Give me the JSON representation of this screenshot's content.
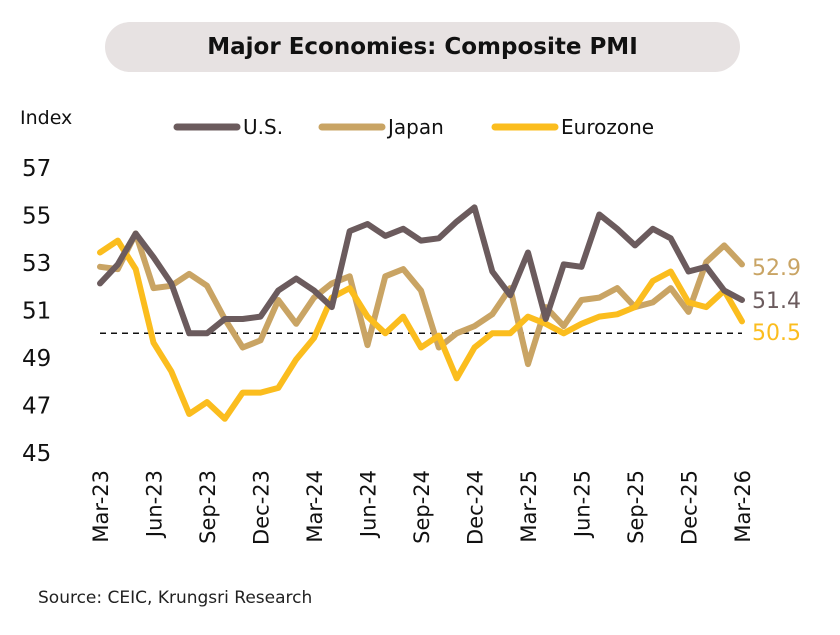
{
  "chart_data": {
    "type": "line",
    "title": "Major Economies: Composite PMI",
    "ylabel": "Index",
    "xlabel": "",
    "ylim": [
      45,
      57
    ],
    "yticks": [
      "45",
      "47",
      "49",
      "51",
      "53",
      "55",
      "57"
    ],
    "x": [
      "Mar-23",
      "Apr-23",
      "May-23",
      "Jun-23",
      "Jul-23",
      "Aug-23",
      "Sep-23",
      "Oct-23",
      "Nov-23",
      "Dec-23",
      "Jan-24",
      "Feb-24",
      "Mar-24",
      "Apr-24",
      "May-24",
      "Jun-24",
      "Jul-24",
      "Aug-24",
      "Sep-24",
      "Oct-24",
      "Nov-24",
      "Dec-24",
      "Jan-25",
      "Feb-25",
      "Mar-25",
      "Apr-25",
      "May-25",
      "Jun-25",
      "Jul-25",
      "Aug-25",
      "Sep-25",
      "Oct-25",
      "Nov-25",
      "Dec-25",
      "Jan-26",
      "Feb-26",
      "Mar-26"
    ],
    "xticks": [
      "Mar-23",
      "Jun-23",
      "Sep-23",
      "Dec-23",
      "Mar-24",
      "Jun-24",
      "Sep-24",
      "Dec-24",
      "Mar-25",
      "Jun-25",
      "Sep-25",
      "Dec-25",
      "Mar-26"
    ],
    "reference_line": 50,
    "legend_position": "top",
    "grid": false,
    "series": [
      {
        "name": "U.S.",
        "color": "#6b5b5d",
        "end_label": "51.4",
        "values": [
          52.1,
          52.9,
          54.2,
          53.2,
          52.1,
          50.0,
          50.0,
          50.6,
          50.6,
          50.7,
          51.8,
          52.3,
          51.8,
          51.1,
          54.3,
          54.6,
          54.1,
          54.4,
          53.9,
          54.0,
          54.7,
          55.3,
          52.6,
          51.6,
          53.4,
          50.6,
          52.9,
          52.8,
          55.0,
          54.4,
          53.7,
          54.4,
          54.0,
          52.6,
          52.8,
          51.8,
          51.4
        ]
      },
      {
        "name": "Japan",
        "color": "#c9a464",
        "end_label": "52.9",
        "values": [
          52.8,
          52.7,
          54.2,
          51.9,
          52.0,
          52.5,
          52.0,
          50.6,
          49.4,
          49.7,
          51.4,
          50.4,
          51.5,
          52.1,
          52.4,
          49.5,
          52.4,
          52.7,
          51.8,
          49.4,
          50.0,
          50.3,
          50.8,
          51.9,
          48.7,
          51.1,
          50.3,
          51.4,
          51.5,
          51.9,
          51.1,
          51.3,
          51.9,
          50.9,
          53.0,
          53.7,
          52.9
        ]
      },
      {
        "name": "Eurozone",
        "color": "#fbbd1e",
        "end_label": "50.5",
        "values": [
          53.4,
          53.9,
          52.7,
          49.6,
          48.4,
          46.6,
          47.1,
          46.4,
          47.5,
          47.5,
          47.7,
          48.9,
          49.8,
          51.5,
          51.9,
          50.7,
          50.0,
          50.7,
          49.4,
          49.9,
          48.1,
          49.4,
          50.0,
          50.0,
          50.7,
          50.4,
          50.0,
          50.4,
          50.7,
          50.8,
          51.1,
          52.2,
          52.6,
          51.3,
          51.1,
          51.8,
          50.5
        ]
      }
    ]
  },
  "source": "Source: CEIC, Krungsri Research"
}
